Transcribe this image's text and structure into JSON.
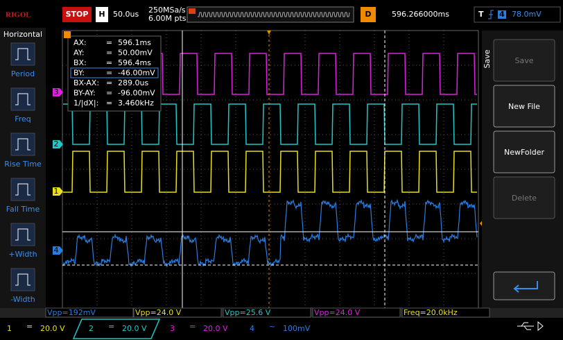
{
  "header": {
    "brand": "RIGOL",
    "status": "STOP",
    "timebase_label": "H",
    "timebase": "50.0us",
    "sample_rate": "250MSa/s",
    "memory_depth": "6.00M pts",
    "delay_label": "D",
    "delay": "596.266000ms",
    "trigger_label": "T",
    "trigger_source": "4",
    "trigger_level": "78.0mV"
  },
  "left_menu": {
    "title": "Horizontal",
    "items": [
      "Period",
      "Freq",
      "Rise Time",
      "Fall Time",
      "+Width",
      "-Width"
    ]
  },
  "cursor_readout": {
    "rows": [
      [
        "AX:",
        "=",
        "596.1ms"
      ],
      [
        "AY:",
        "=",
        "50.00mV"
      ],
      [
        "BX:",
        "=",
        "596.4ms"
      ],
      [
        "BY:",
        "=",
        "-46.00mV"
      ],
      [
        "BX-AX:",
        "=",
        "289.0us"
      ],
      [
        "BY-AY:",
        "=",
        "-96.00mV"
      ],
      [
        "1/|dX|:",
        "=",
        "3.460kHz"
      ]
    ]
  },
  "channel_markers": [
    "3",
    "2",
    "1",
    "4"
  ],
  "trigger_marker": "T",
  "right_menu": {
    "title": "Save",
    "buttons": [
      "Save",
      "New File",
      "NewFolder",
      "Delete"
    ]
  },
  "measurements": [
    "Vpp=192mV",
    "Vpp=24.0 V",
    "Vpp=25.6 V",
    "Vpp=24.0 V",
    "Freq=20.0kHz"
  ],
  "channels": [
    {
      "number": "1",
      "coupling": "=",
      "scale": "20.0 V"
    },
    {
      "number": "2",
      "coupling": "=",
      "scale": "20.0 V"
    },
    {
      "number": "3",
      "coupling": "=",
      "scale": "20.0 V"
    },
    {
      "number": "4",
      "coupling": "~",
      "scale": "100mV"
    }
  ]
}
